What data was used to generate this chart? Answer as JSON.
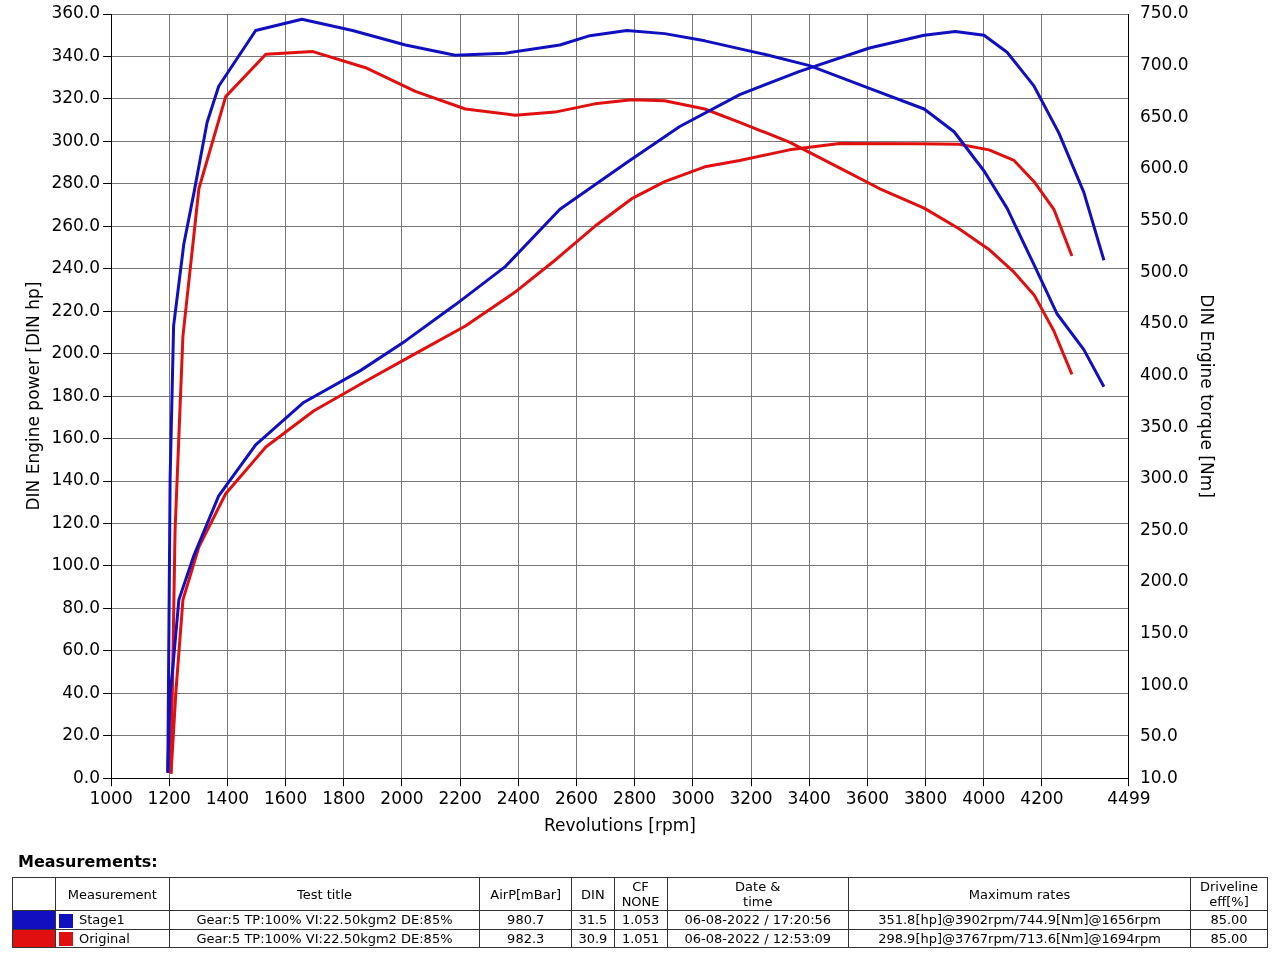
{
  "chart_data": {
    "type": "line",
    "xlabel": "Revolutions [rpm]",
    "ylabel": "DIN Engine power [DIN hp]",
    "y2label": "DIN Engine torque [Nm]",
    "xlim": [
      1000,
      4499
    ],
    "xticks": [
      1000,
      1200,
      1400,
      1600,
      1800,
      2000,
      2200,
      2400,
      2600,
      2800,
      3000,
      3200,
      3400,
      3600,
      3800,
      4000,
      4200,
      4499
    ],
    "ylim": [
      0,
      360
    ],
    "yticks": [
      {
        "value": 0,
        "label": "0.0"
      },
      {
        "value": 20,
        "label": "20.0"
      },
      {
        "value": 40,
        "label": "40.0"
      },
      {
        "value": 60,
        "label": "60.0"
      },
      {
        "value": 80,
        "label": "80.0"
      },
      {
        "value": 100,
        "label": "100.0"
      },
      {
        "value": 120,
        "label": "120.0"
      },
      {
        "value": 140,
        "label": "140.0"
      },
      {
        "value": 160,
        "label": "160.0"
      },
      {
        "value": 180,
        "label": "180.0"
      },
      {
        "value": 200,
        "label": "200.0"
      },
      {
        "value": 220,
        "label": "220.0"
      },
      {
        "value": 240,
        "label": "240.0"
      },
      {
        "value": 260,
        "label": "260.0"
      },
      {
        "value": 280,
        "label": "280.0"
      },
      {
        "value": 300,
        "label": "300.0"
      },
      {
        "value": 320,
        "label": "320.0"
      },
      {
        "value": 340,
        "label": "340.0"
      },
      {
        "value": 360,
        "label": "360.0"
      }
    ],
    "y2lim": [
      10,
      750
    ],
    "y2ticks": [
      {
        "value": 10,
        "label": "10.0"
      },
      {
        "value": 50,
        "label": "50.0"
      },
      {
        "value": 100,
        "label": "100.0"
      },
      {
        "value": 150,
        "label": "150.0"
      },
      {
        "value": 200,
        "label": "200.0"
      },
      {
        "value": 250,
        "label": "250.0"
      },
      {
        "value": 300,
        "label": "300.0"
      },
      {
        "value": 350,
        "label": "350.0"
      },
      {
        "value": 400,
        "label": "400.0"
      },
      {
        "value": 450,
        "label": "450.0"
      },
      {
        "value": 500,
        "label": "500.0"
      },
      {
        "value": 550,
        "label": "550.0"
      },
      {
        "value": 600,
        "label": "600.0"
      },
      {
        "value": 650,
        "label": "650.0"
      },
      {
        "value": 700,
        "label": "700.0"
      },
      {
        "value": 750,
        "label": "750.0"
      }
    ],
    "grid": true,
    "legend": "bottom",
    "marker": "none",
    "line_style": "solid",
    "series": [
      {
        "name": "Stage1",
        "color": "#1010c0",
        "x": [
          1195,
          1203,
          1213,
          1233,
          1285,
          1370,
          1497,
          1662,
          1857,
          2012,
          2183,
          2355,
          2543,
          2773,
          2955,
          3161,
          3367,
          3607,
          3795,
          3902,
          4001,
          4080,
          4173,
          4258,
          4344,
          4413
        ],
        "values": [
          3,
          40,
          53,
          84,
          105,
          133,
          157,
          177,
          192,
          206,
          223,
          241,
          268,
          290,
          307,
          322,
          333,
          344,
          350,
          351.8,
          350,
          342,
          326,
          304,
          276,
          244
        ]
      },
      {
        "color": "#1010c0",
        "axis": "y2",
        "x": [
          1195,
          1203,
          1215,
          1250,
          1285,
          1330,
          1370,
          1497,
          1656,
          1830,
          2012,
          2183,
          2355,
          2543,
          2646,
          2773,
          2903,
          3041,
          3246,
          3401,
          3607,
          3795,
          3898,
          4001,
          4080,
          4173,
          4251,
          4344,
          4413
        ],
        "values": [
          15,
          300,
          448,
          527,
          577,
          645,
          680,
          734,
          744.9,
          734,
          720,
          710,
          712,
          720,
          729,
          734,
          731,
          724,
          711,
          700,
          678,
          658,
          636,
          598,
          562,
          507,
          460,
          425,
          389
        ]
      },
      {
        "name": "Original",
        "color": "#e01010",
        "x": [
          1206,
          1223,
          1247,
          1302,
          1394,
          1532,
          1696,
          1875,
          2046,
          2218,
          2389,
          2526,
          2663,
          2790,
          2903,
          3041,
          3161,
          3332,
          3504,
          3767,
          3915,
          4018,
          4104,
          4173,
          4241,
          4303
        ],
        "values": [
          2,
          41,
          84,
          109,
          134,
          156,
          173,
          187,
          200,
          213,
          229,
          244,
          260,
          273,
          281,
          288,
          291,
          296,
          299,
          298.9,
          298.6,
          296,
          291,
          281,
          268,
          246
        ]
      },
      {
        "color": "#e01010",
        "axis": "y2",
        "x": [
          1206,
          1220,
          1247,
          1302,
          1394,
          1532,
          1694,
          1875,
          2046,
          2218,
          2389,
          2526,
          2663,
          2790,
          2903,
          3041,
          3161,
          3332,
          3504,
          3641,
          3795,
          3915,
          4018,
          4104,
          4173,
          4241,
          4303
        ],
        "values": [
          15,
          250,
          438,
          581,
          670,
          711,
          713.6,
          698,
          675,
          658,
          652,
          655,
          663,
          667,
          666,
          658,
          645,
          626,
          601,
          581,
          562,
          542,
          522,
          500,
          478,
          443,
          401
        ]
      }
    ],
    "annotations": [
      "Measurements:",
      "Measurement",
      "Test title",
      "AirP[mBar]",
      "DIN",
      "CF\nNONE",
      "Date &\ntime",
      "Maximum rates",
      "Driveline\neff[%]",
      "Gear:5 TP:100% VI:22.50kgm2 DE:85%",
      "980.7",
      "31.5",
      "1.053",
      "06-08-2022 / 17:20:56",
      "351.8[hp]@3902rpm/744.9[Nm]@1656rpm",
      "85.00",
      "Gear:5 TP:100% VI:22.50kgm2 DE:85%",
      "982.3",
      "30.9",
      "1.051",
      "06-08-2022 / 12:53:09",
      "298.9[hp]@3767rpm/713.6[Nm]@1694rpm",
      "85.00"
    ]
  }
}
